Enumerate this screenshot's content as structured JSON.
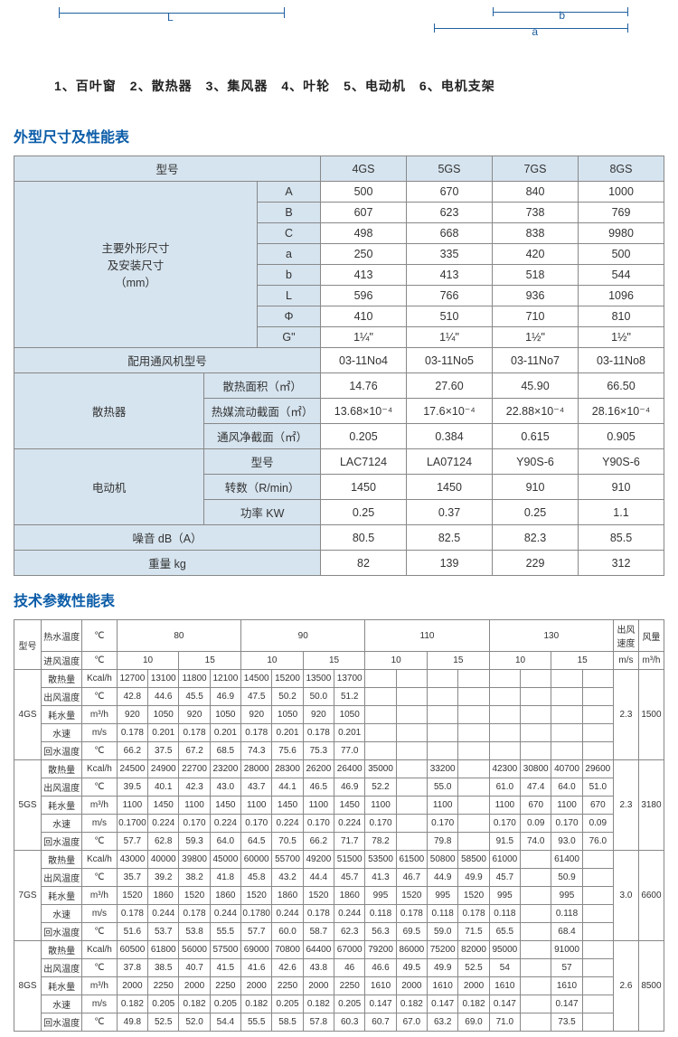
{
  "diagram": {
    "L": "L",
    "b": "b",
    "a": "a"
  },
  "parts_list": "1、百叶窗　2、散热器　3、集风器　4、叶轮　5、电动机　6、电机支架",
  "section1_title": "外型尺寸及性能表",
  "t1": {
    "model_label": "型号",
    "models": [
      "4GS",
      "5GS",
      "7GS",
      "8GS"
    ],
    "dim_group": "主要外形尺寸\n及安装尺寸\n（mm）",
    "dims": [
      {
        "k": "A",
        "v": [
          "500",
          "670",
          "840",
          "1000"
        ]
      },
      {
        "k": "B",
        "v": [
          "607",
          "623",
          "738",
          "769"
        ]
      },
      {
        "k": "C",
        "v": [
          "498",
          "668",
          "838",
          "9980"
        ]
      },
      {
        "k": "a",
        "v": [
          "250",
          "335",
          "420",
          "500"
        ]
      },
      {
        "k": "b",
        "v": [
          "413",
          "413",
          "518",
          "544"
        ]
      },
      {
        "k": "L",
        "v": [
          "596",
          "766",
          "936",
          "1096"
        ]
      },
      {
        "k": "Φ",
        "v": [
          "410",
          "510",
          "710",
          "810"
        ]
      },
      {
        "k": "G\"",
        "v": [
          "1¼\"",
          "1¼\"",
          "1½\"",
          "1½\""
        ]
      }
    ],
    "fan_model_label": "配用通风机型号",
    "fan_models": [
      "03-11No4",
      "03-11No5",
      "03-11No7",
      "03-11No8"
    ],
    "radiator_label": "散热器",
    "radiator_rows": [
      {
        "k": "散热面积（㎡）",
        "v": [
          "14.76",
          "27.60",
          "45.90",
          "66.50"
        ]
      },
      {
        "k": "热媒流动截面（㎡）",
        "v": [
          "13.68×10⁻⁴",
          "17.6×10⁻⁴",
          "22.88×10⁻⁴",
          "28.16×10⁻⁴"
        ]
      },
      {
        "k": "通风净截面（㎡）",
        "v": [
          "0.205",
          "0.384",
          "0.615",
          "0.905"
        ]
      }
    ],
    "motor_label": "电动机",
    "motor_rows": [
      {
        "k": "型号",
        "v": [
          "LAC7124",
          "LA07124",
          "Y90S-6",
          "Y90S-6"
        ]
      },
      {
        "k": "转数（R/min）",
        "v": [
          "1450",
          "1450",
          "910",
          "910"
        ]
      },
      {
        "k": "功率 KW",
        "v": [
          "0.25",
          "0.37",
          "0.25",
          "1.1"
        ]
      }
    ],
    "noise_label": "噪音 dB（A）",
    "noise": [
      "80.5",
      "82.5",
      "82.3",
      "85.5"
    ],
    "weight_label": "重量 kg",
    "weight": [
      "82",
      "139",
      "229",
      "312"
    ]
  },
  "section2_title": "技术参数性能表",
  "t2": {
    "h": {
      "model": "型号",
      "hot": "热水温度",
      "in": "进风温度",
      "c": "℃",
      "t80": "80",
      "t90": "90",
      "t110": "110",
      "t130": "130",
      "s10": "10",
      "s15": "15",
      "out_speed": "出风\n速度",
      "out_unit": "m/s",
      "flow": "风量",
      "flow_unit": "m³/h"
    },
    "rowlabels": {
      "heat": "散热量",
      "heat_u": "Kcal/h",
      "outT": "出风温度",
      "outT_u": "℃",
      "water": "耗水量",
      "water_u": "m³/h",
      "ws": "水速",
      "ws_u": "m/s",
      "ret": "回水温度",
      "ret_u": "℃"
    },
    "g4": {
      "name": "4GS",
      "speed": "2.3",
      "flow": "1500",
      "heat": [
        "12700",
        "13100",
        "11800",
        "12100",
        "14500",
        "15200",
        "13500",
        "13700",
        "",
        "",
        "",
        "",
        "",
        "",
        "",
        ""
      ],
      "outT": [
        "42.8",
        "44.6",
        "45.5",
        "46.9",
        "47.5",
        "50.2",
        "50.0",
        "51.2",
        "",
        "",
        "",
        "",
        "",
        "",
        "",
        ""
      ],
      "water": [
        "920",
        "1050",
        "920",
        "1050",
        "920",
        "1050",
        "920",
        "1050",
        "",
        "",
        "",
        "",
        "",
        "",
        "",
        ""
      ],
      "ws": [
        "0.178",
        "0.201",
        "0.178",
        "0.201",
        "0.178",
        "0.201",
        "0.178",
        "0.201",
        "",
        "",
        "",
        "",
        "",
        "",
        "",
        ""
      ],
      "ret": [
        "66.2",
        "37.5",
        "67.2",
        "68.5",
        "74.3",
        "75.6",
        "75.3",
        "77.0",
        "",
        "",
        "",
        "",
        "",
        "",
        "",
        ""
      ]
    },
    "g5": {
      "name": "5GS",
      "speed": "2.3",
      "flow": "3180",
      "heat": [
        "24500",
        "24900",
        "22700",
        "23200",
        "28000",
        "28300",
        "26200",
        "26400",
        "35000",
        "",
        "33200",
        "",
        "42300",
        "30800",
        "40700",
        "29600"
      ],
      "outT": [
        "39.5",
        "40.1",
        "42.3",
        "43.0",
        "43.7",
        "44.1",
        "46.5",
        "46.9",
        "52.2",
        "",
        "55.0",
        "",
        "61.0",
        "47.4",
        "64.0",
        "51.0"
      ],
      "water": [
        "1100",
        "1450",
        "1100",
        "1450",
        "1100",
        "1450",
        "1100",
        "1450",
        "1100",
        "",
        "1100",
        "",
        "1100",
        "670",
        "1100",
        "670"
      ],
      "ws": [
        "0.1700",
        "0.224",
        "0.170",
        "0.224",
        "0.170",
        "0.224",
        "0.170",
        "0.224",
        "0.170",
        "",
        "0.170",
        "",
        "0.170",
        "0.09",
        "0.170",
        "0.09"
      ],
      "ret": [
        "57.7",
        "62.8",
        "59.3",
        "64.0",
        "64.5",
        "70.5",
        "66.2",
        "71.7",
        "78.2",
        "",
        "79.8",
        "",
        "91.5",
        "74.0",
        "93.0",
        "76.0"
      ]
    },
    "g7": {
      "name": "7GS",
      "speed": "3.0",
      "flow": "6600",
      "heat": [
        "43000",
        "40000",
        "39800",
        "45000",
        "60000",
        "55700",
        "49200",
        "51500",
        "53500",
        "61500",
        "50800",
        "58500",
        "61000",
        "",
        "61400",
        ""
      ],
      "outT": [
        "35.7",
        "39.2",
        "38.2",
        "41.8",
        "45.8",
        "43.2",
        "44.4",
        "45.7",
        "41.3",
        "46.7",
        "44.9",
        "49.9",
        "45.7",
        "",
        "50.9",
        ""
      ],
      "water": [
        "1520",
        "1860",
        "1520",
        "1860",
        "1520",
        "1860",
        "1520",
        "1860",
        "995",
        "1520",
        "995",
        "1520",
        "995",
        "",
        "995",
        ""
      ],
      "ws": [
        "0.178",
        "0.244",
        "0.178",
        "0.244",
        "0.1780",
        "0.244",
        "0.178",
        "0.244",
        "0.118",
        "0.178",
        "0.118",
        "0.178",
        "0.118",
        "",
        "0.118",
        ""
      ],
      "ret": [
        "51.6",
        "53.7",
        "53.8",
        "55.5",
        "57.7",
        "60.0",
        "58.7",
        "62.3",
        "56.3",
        "69.5",
        "59.0",
        "71.5",
        "65.5",
        "",
        "68.4",
        ""
      ]
    },
    "g8": {
      "name": "8GS",
      "speed": "2.6",
      "flow": "8500",
      "heat": [
        "60500",
        "61800",
        "56000",
        "57500",
        "69000",
        "70800",
        "64400",
        "67000",
        "79200",
        "86000",
        "75200",
        "82000",
        "95000",
        "",
        "91000",
        ""
      ],
      "outT": [
        "37.8",
        "38.5",
        "40.7",
        "41.5",
        "41.6",
        "42.6",
        "43.8",
        "46",
        "46.6",
        "49.5",
        "49.9",
        "52.5",
        "54",
        "",
        "57",
        ""
      ],
      "water": [
        "2000",
        "2250",
        "2000",
        "2250",
        "2000",
        "2250",
        "2000",
        "2250",
        "1610",
        "2000",
        "1610",
        "2000",
        "1610",
        "",
        "1610",
        ""
      ],
      "ws": [
        "0.182",
        "0.205",
        "0.182",
        "0.205",
        "0.182",
        "0.205",
        "0.182",
        "0.205",
        "0.147",
        "0.182",
        "0.147",
        "0.182",
        "0.147",
        "",
        "0.147",
        ""
      ],
      "ret": [
        "49.8",
        "52.5",
        "52.0",
        "54.4",
        "55.5",
        "58.5",
        "57.8",
        "60.3",
        "60.7",
        "67.0",
        "63.2",
        "69.0",
        "71.0",
        "",
        "73.5",
        ""
      ]
    }
  }
}
